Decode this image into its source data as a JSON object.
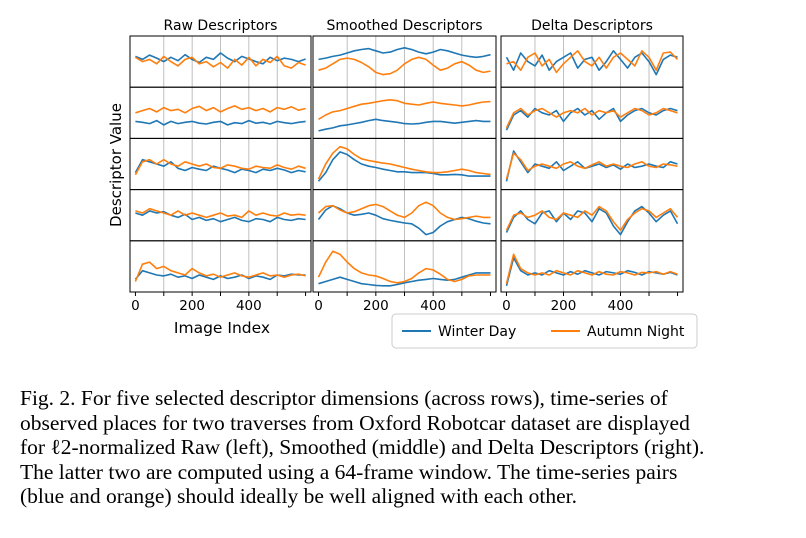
{
  "chart_data": {
    "type": "line",
    "panel_titles": [
      "Raw Descriptors",
      "Smoothed Descriptors",
      "Delta Descriptors"
    ],
    "ylabel": "Descriptor Value",
    "xlabel": "Image Index",
    "x_ticks": [
      "0",
      "200",
      "400"
    ],
    "xlim": [
      0,
      600
    ],
    "rows": 5,
    "y_ticks_shown": false,
    "grid": "vertical",
    "legend": {
      "placement": "bottom-right",
      "entries": [
        "Winter Day",
        "Autumn Night"
      ]
    },
    "series_colors": {
      "Winter Day": "#1f77b4",
      "Autumn Night": "#ff7f0e"
    },
    "x": [
      0,
      25,
      50,
      75,
      100,
      125,
      150,
      175,
      200,
      225,
      250,
      275,
      300,
      325,
      350,
      375,
      400,
      425,
      450,
      475,
      500,
      525,
      550,
      575,
      600
    ],
    "panels": [
      {
        "title": "Raw Descriptors",
        "rows": [
          {
            "Winter Day": [
              0.62,
              0.55,
              0.65,
              0.58,
              0.5,
              0.6,
              0.52,
              0.66,
              0.55,
              0.48,
              0.6,
              0.55,
              0.7,
              0.58,
              0.5,
              0.62,
              0.56,
              0.5,
              0.45,
              0.6,
              0.52,
              0.58,
              0.55,
              0.5,
              0.56
            ],
            "Autumn Night": [
              0.6,
              0.5,
              0.55,
              0.45,
              0.62,
              0.5,
              0.4,
              0.55,
              0.6,
              0.45,
              0.5,
              0.38,
              0.48,
              0.35,
              0.55,
              0.42,
              0.6,
              0.4,
              0.55,
              0.48,
              0.62,
              0.4,
              0.35,
              0.48,
              0.42
            ]
          },
          {
            "Winter Day": [
              0.3,
              0.28,
              0.25,
              0.32,
              0.22,
              0.3,
              0.25,
              0.28,
              0.3,
              0.26,
              0.24,
              0.28,
              0.3,
              0.22,
              0.27,
              0.25,
              0.32,
              0.26,
              0.28,
              0.24,
              0.3,
              0.27,
              0.25,
              0.28,
              0.3
            ],
            "Autumn Night": [
              0.5,
              0.55,
              0.6,
              0.52,
              0.62,
              0.55,
              0.58,
              0.5,
              0.6,
              0.65,
              0.55,
              0.62,
              0.52,
              0.6,
              0.66,
              0.58,
              0.62,
              0.55,
              0.6,
              0.52,
              0.62,
              0.58,
              0.64,
              0.56,
              0.6
            ]
          },
          {
            "Winter Day": [
              0.3,
              0.6,
              0.55,
              0.5,
              0.45,
              0.55,
              0.4,
              0.35,
              0.42,
              0.38,
              0.35,
              0.45,
              0.4,
              0.36,
              0.3,
              0.38,
              0.35,
              0.3,
              0.38,
              0.35,
              0.4,
              0.36,
              0.3,
              0.35,
              0.32
            ],
            "Autumn Night": [
              0.25,
              0.55,
              0.6,
              0.5,
              0.6,
              0.5,
              0.45,
              0.55,
              0.5,
              0.45,
              0.5,
              0.42,
              0.4,
              0.48,
              0.45,
              0.4,
              0.38,
              0.45,
              0.42,
              0.4,
              0.48,
              0.42,
              0.38,
              0.45,
              0.4
            ]
          },
          {
            "Winter Day": [
              0.55,
              0.5,
              0.6,
              0.55,
              0.58,
              0.5,
              0.45,
              0.52,
              0.4,
              0.45,
              0.38,
              0.42,
              0.35,
              0.4,
              0.45,
              0.38,
              0.35,
              0.42,
              0.4,
              0.35,
              0.45,
              0.4,
              0.38,
              0.42,
              0.4
            ],
            "Autumn Night": [
              0.6,
              0.55,
              0.65,
              0.6,
              0.55,
              0.5,
              0.6,
              0.5,
              0.55,
              0.5,
              0.45,
              0.5,
              0.55,
              0.48,
              0.5,
              0.45,
              0.6,
              0.5,
              0.55,
              0.5,
              0.48,
              0.55,
              0.5,
              0.52,
              0.5
            ]
          },
          {
            "Winter Day": [
              0.2,
              0.4,
              0.35,
              0.3,
              0.28,
              0.32,
              0.25,
              0.28,
              0.22,
              0.3,
              0.25,
              0.2,
              0.28,
              0.22,
              0.25,
              0.3,
              0.22,
              0.28,
              0.25,
              0.2,
              0.3,
              0.28,
              0.32,
              0.3,
              0.3
            ],
            "Autumn Night": [
              0.15,
              0.55,
              0.6,
              0.45,
              0.5,
              0.4,
              0.35,
              0.3,
              0.45,
              0.35,
              0.28,
              0.32,
              0.25,
              0.3,
              0.35,
              0.28,
              0.25,
              0.3,
              0.35,
              0.28,
              0.3,
              0.25,
              0.3,
              0.32,
              0.28
            ]
          }
        ]
      },
      {
        "title": "Smoothed Descriptors",
        "rows": [
          {
            "Winter Day": [
              0.55,
              0.58,
              0.62,
              0.65,
              0.7,
              0.75,
              0.78,
              0.8,
              0.75,
              0.7,
              0.72,
              0.78,
              0.82,
              0.78,
              0.72,
              0.68,
              0.72,
              0.78,
              0.75,
              0.7,
              0.65,
              0.62,
              0.6,
              0.62,
              0.66
            ],
            "Autumn Night": [
              0.3,
              0.35,
              0.45,
              0.55,
              0.58,
              0.55,
              0.48,
              0.38,
              0.25,
              0.2,
              0.22,
              0.3,
              0.45,
              0.55,
              0.6,
              0.55,
              0.42,
              0.3,
              0.35,
              0.45,
              0.5,
              0.42,
              0.3,
              0.25,
              0.28
            ]
          },
          {
            "Winter Day": [
              0.08,
              0.12,
              0.15,
              0.2,
              0.22,
              0.25,
              0.28,
              0.32,
              0.35,
              0.32,
              0.3,
              0.28,
              0.25,
              0.24,
              0.25,
              0.28,
              0.3,
              0.3,
              0.28,
              0.26,
              0.28,
              0.3,
              0.32,
              0.3,
              0.3
            ],
            "Autumn Night": [
              0.35,
              0.45,
              0.52,
              0.55,
              0.6,
              0.65,
              0.7,
              0.72,
              0.75,
              0.78,
              0.8,
              0.78,
              0.72,
              0.7,
              0.68,
              0.72,
              0.75,
              0.72,
              0.7,
              0.68,
              0.66,
              0.68,
              0.72,
              0.75,
              0.76
            ]
          },
          {
            "Winter Day": [
              0.1,
              0.3,
              0.6,
              0.78,
              0.72,
              0.6,
              0.5,
              0.45,
              0.42,
              0.38,
              0.35,
              0.32,
              0.32,
              0.3,
              0.3,
              0.3,
              0.28,
              0.25,
              0.25,
              0.26,
              0.25,
              0.22,
              0.22,
              0.22,
              0.22
            ],
            "Autumn Night": [
              0.15,
              0.5,
              0.75,
              0.9,
              0.85,
              0.72,
              0.62,
              0.58,
              0.55,
              0.52,
              0.5,
              0.46,
              0.42,
              0.38,
              0.35,
              0.32,
              0.3,
              0.3,
              0.32,
              0.35,
              0.38,
              0.35,
              0.3,
              0.28,
              0.26
            ]
          },
          {
            "Winter Day": [
              0.4,
              0.62,
              0.72,
              0.65,
              0.55,
              0.5,
              0.52,
              0.55,
              0.5,
              0.42,
              0.38,
              0.35,
              0.32,
              0.3,
              0.2,
              0.05,
              0.1,
              0.25,
              0.35,
              0.4,
              0.45,
              0.42,
              0.36,
              0.32,
              0.3
            ],
            "Autumn Night": [
              0.55,
              0.7,
              0.72,
              0.62,
              0.55,
              0.58,
              0.65,
              0.72,
              0.75,
              0.7,
              0.6,
              0.5,
              0.45,
              0.55,
              0.72,
              0.8,
              0.72,
              0.55,
              0.45,
              0.4,
              0.42,
              0.45,
              0.48,
              0.45,
              0.45
            ]
          },
          {
            "Winter Day": [
              0.1,
              0.15,
              0.2,
              0.25,
              0.2,
              0.15,
              0.1,
              0.08,
              0.06,
              0.05,
              0.05,
              0.08,
              0.12,
              0.15,
              0.18,
              0.2,
              0.22,
              0.2,
              0.18,
              0.2,
              0.25,
              0.3,
              0.35,
              0.35,
              0.35
            ],
            "Autumn Night": [
              0.25,
              0.6,
              0.85,
              0.78,
              0.6,
              0.45,
              0.35,
              0.3,
              0.28,
              0.22,
              0.15,
              0.12,
              0.15,
              0.22,
              0.35,
              0.45,
              0.42,
              0.32,
              0.2,
              0.15,
              0.2,
              0.28,
              0.3,
              0.3,
              0.3
            ]
          }
        ]
      },
      {
        "title": "Delta Descriptors",
        "rows": [
          {
            "Winter Day": [
              0.6,
              0.3,
              0.7,
              0.5,
              0.4,
              0.65,
              0.3,
              0.5,
              0.6,
              0.7,
              0.35,
              0.55,
              0.6,
              0.3,
              0.5,
              0.75,
              0.55,
              0.35,
              0.6,
              0.7,
              0.5,
              0.2,
              0.55,
              0.65,
              0.6
            ],
            "Autumn Night": [
              0.45,
              0.5,
              0.3,
              0.6,
              0.7,
              0.4,
              0.55,
              0.25,
              0.45,
              0.6,
              0.75,
              0.5,
              0.4,
              0.6,
              0.35,
              0.6,
              0.7,
              0.55,
              0.4,
              0.75,
              0.6,
              0.3,
              0.7,
              0.72,
              0.55
            ]
          },
          {
            "Winter Day": [
              0.1,
              0.45,
              0.55,
              0.4,
              0.6,
              0.5,
              0.45,
              0.55,
              0.3,
              0.5,
              0.6,
              0.45,
              0.55,
              0.35,
              0.5,
              0.6,
              0.3,
              0.45,
              0.55,
              0.6,
              0.5,
              0.45,
              0.55,
              0.6,
              0.55
            ],
            "Autumn Night": [
              0.15,
              0.5,
              0.6,
              0.45,
              0.55,
              0.6,
              0.5,
              0.4,
              0.5,
              0.55,
              0.5,
              0.6,
              0.45,
              0.55,
              0.5,
              0.55,
              0.4,
              0.5,
              0.6,
              0.55,
              0.45,
              0.5,
              0.6,
              0.55,
              0.5
            ]
          },
          {
            "Winter Day": [
              0.1,
              0.8,
              0.55,
              0.3,
              0.5,
              0.45,
              0.4,
              0.55,
              0.35,
              0.45,
              0.55,
              0.4,
              0.45,
              0.5,
              0.42,
              0.48,
              0.38,
              0.5,
              0.42,
              0.45,
              0.5,
              0.45,
              0.42,
              0.55,
              0.5
            ],
            "Autumn Night": [
              0.15,
              0.75,
              0.6,
              0.35,
              0.45,
              0.5,
              0.45,
              0.4,
              0.5,
              0.55,
              0.45,
              0.4,
              0.48,
              0.55,
              0.45,
              0.5,
              0.45,
              0.42,
              0.5,
              0.55,
              0.45,
              0.42,
              0.5,
              0.48,
              0.45
            ]
          },
          {
            "Winter Day": [
              0.1,
              0.45,
              0.6,
              0.4,
              0.3,
              0.55,
              0.6,
              0.35,
              0.55,
              0.4,
              0.6,
              0.55,
              0.35,
              0.65,
              0.55,
              0.25,
              0.05,
              0.35,
              0.6,
              0.7,
              0.55,
              0.35,
              0.5,
              0.6,
              0.3
            ],
            "Autumn Night": [
              0.15,
              0.5,
              0.55,
              0.45,
              0.5,
              0.6,
              0.45,
              0.4,
              0.55,
              0.5,
              0.45,
              0.6,
              0.5,
              0.7,
              0.6,
              0.35,
              0.15,
              0.4,
              0.55,
              0.65,
              0.6,
              0.45,
              0.55,
              0.65,
              0.45
            ]
          },
          {
            "Winter Day": [
              0.05,
              0.7,
              0.4,
              0.3,
              0.35,
              0.3,
              0.4,
              0.35,
              0.3,
              0.38,
              0.32,
              0.4,
              0.35,
              0.3,
              0.38,
              0.35,
              0.32,
              0.4,
              0.36,
              0.3,
              0.38,
              0.35,
              0.32,
              0.36,
              0.3
            ],
            "Autumn Night": [
              0.1,
              0.78,
              0.45,
              0.35,
              0.3,
              0.35,
              0.3,
              0.4,
              0.35,
              0.3,
              0.4,
              0.35,
              0.3,
              0.38,
              0.32,
              0.3,
              0.38,
              0.35,
              0.3,
              0.36,
              0.35,
              0.38,
              0.32,
              0.38,
              0.32
            ]
          }
        ]
      }
    ]
  },
  "caption": {
    "lines": [
      "Fig. 2.  For five selected descriptor dimensions (across rows), time-series of",
      "observed places for two traverses from Oxford Robotcar dataset are displayed",
      "for ℓ2-normalized Raw (left), Smoothed (middle) and Delta Descriptors (right).",
      "The latter two are computed using a 64-frame window. The time-series pairs",
      "(blue and orange) should ideally be well aligned with each other."
    ]
  }
}
